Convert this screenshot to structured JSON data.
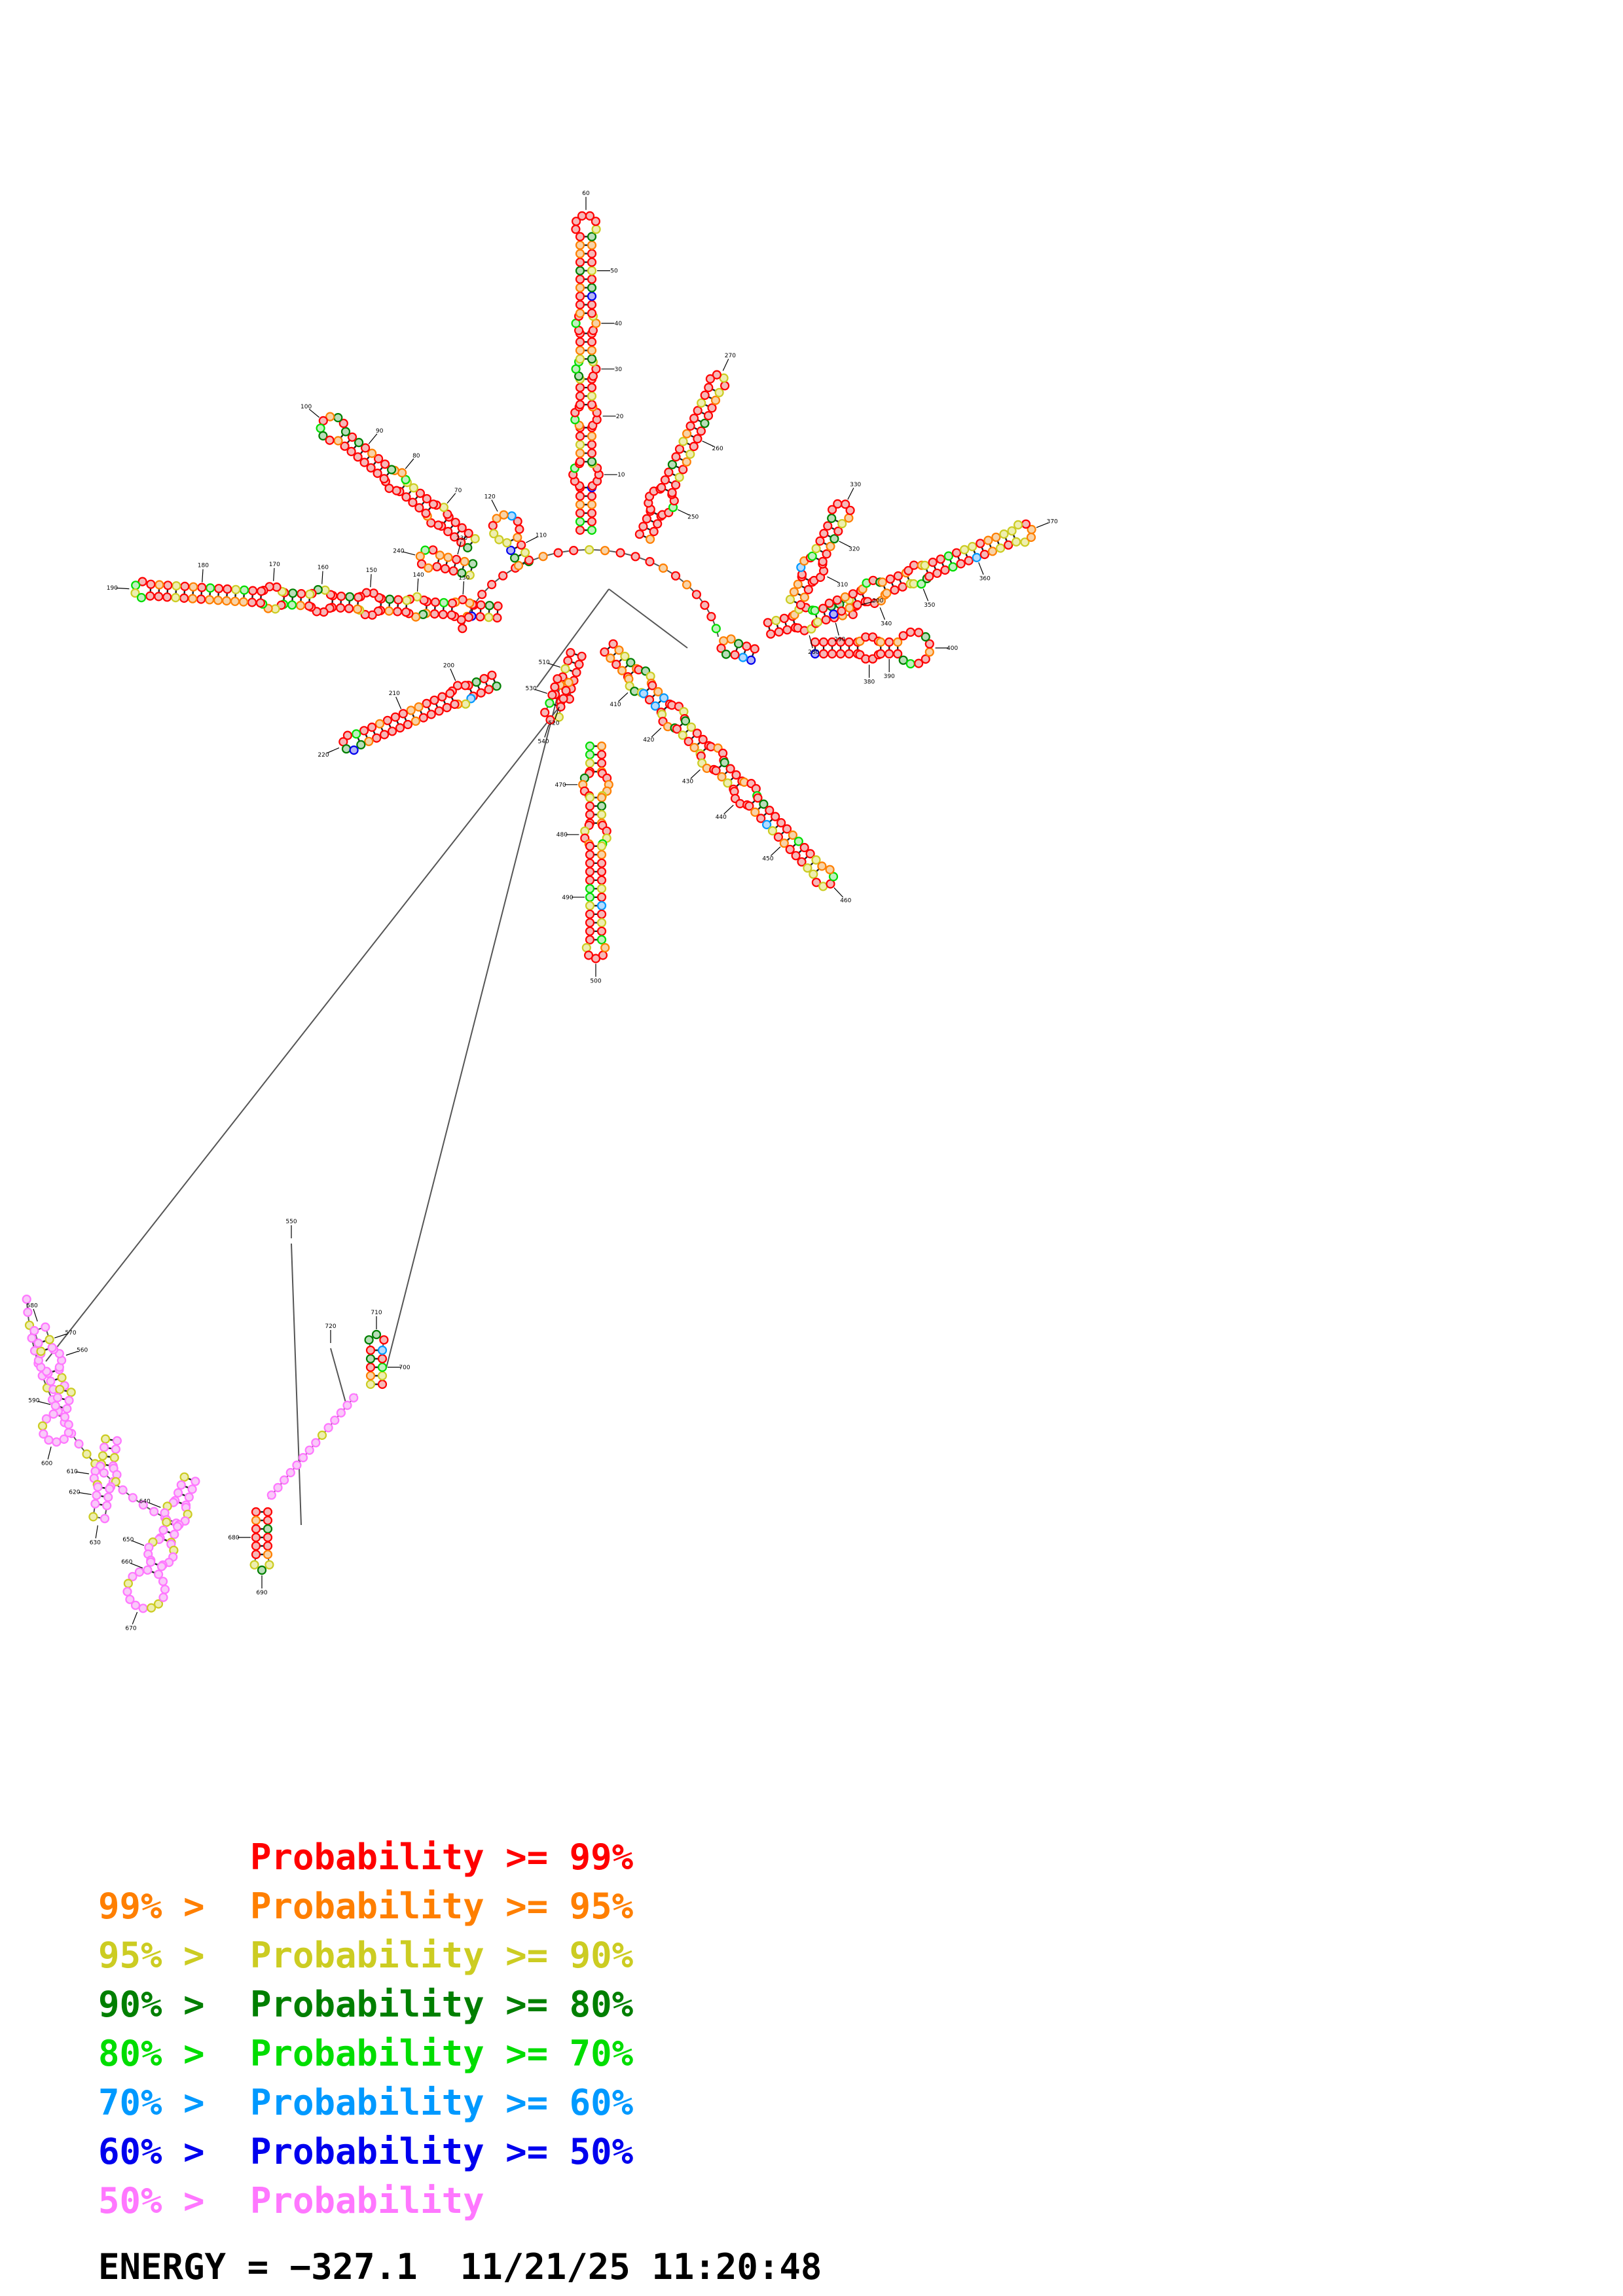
{
  "legend": [
    {
      "prefix": "",
      "label": "Probability >= 99%",
      "color": "#ff0000"
    },
    {
      "prefix": "99% > ",
      "label": "Probability >= 95%",
      "color": "#ff7f00"
    },
    {
      "prefix": "95% > ",
      "label": "Probability >= 90%",
      "color": "#cccc22"
    },
    {
      "prefix": "90% > ",
      "label": "Probability >= 80%",
      "color": "#007f00"
    },
    {
      "prefix": "80% > ",
      "label": "Probability >= 70%",
      "color": "#00dd00"
    },
    {
      "prefix": "70% > ",
      "label": "Probability >= 60%",
      "color": "#0099ff"
    },
    {
      "prefix": "60% > ",
      "label": "Probability >= 50%",
      "color": "#0000ee"
    },
    {
      "prefix": "50% > ",
      "label": "Probability",
      "color": "#ff77ff"
    }
  ],
  "energy": {
    "label": "ENERGY =",
    "value": "−327.1",
    "date": "11/21/25",
    "time": "11:20:48"
  },
  "diagram": {
    "numbers": [
      "10",
      "20",
      "30",
      "40",
      "50",
      "60",
      "70",
      "80",
      "90",
      "100",
      "110",
      "120",
      "130",
      "140",
      "150",
      "160",
      "170",
      "180",
      "190",
      "200",
      "210",
      "220",
      "230",
      "240",
      "250",
      "260",
      "270",
      "280",
      "290",
      "300",
      "310",
      "320",
      "330",
      "340",
      "350",
      "360",
      "370",
      "380",
      "390",
      "400",
      "410",
      "420",
      "430",
      "440",
      "450",
      "460",
      "470",
      "480",
      "490",
      "500",
      "510",
      "520",
      "530",
      "540",
      "550",
      "560",
      "570",
      "580",
      "590",
      "600",
      "610",
      "620",
      "630",
      "640",
      "650",
      "660",
      "670",
      "680",
      "690",
      "700",
      "710",
      "720",
      "730",
      "740",
      "750",
      "760",
      "770"
    ]
  }
}
